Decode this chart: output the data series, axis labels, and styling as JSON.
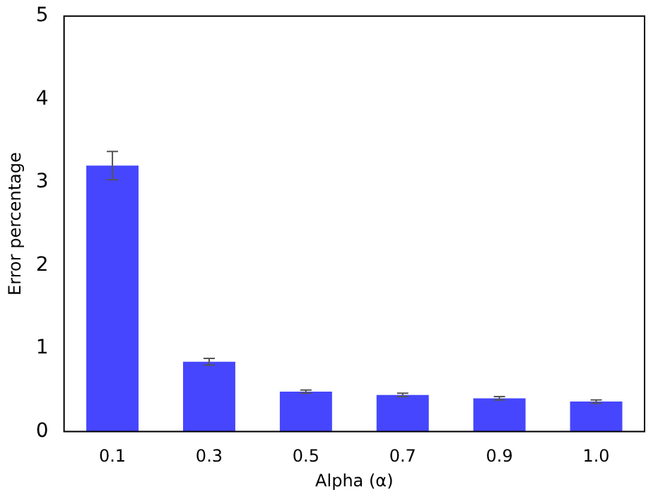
{
  "chart_data": {
    "type": "bar",
    "xlabel": "Alpha (α)",
    "ylabel": "Error percentage",
    "categories": [
      "0.1",
      "0.3",
      "0.5",
      "0.7",
      "0.9",
      "1.0"
    ],
    "values": [
      3.2,
      0.84,
      0.48,
      0.44,
      0.4,
      0.36
    ],
    "errors": [
      0.17,
      0.04,
      0.02,
      0.02,
      0.02,
      0.02
    ],
    "color": "#4646ff",
    "ylim": [
      0,
      5
    ],
    "yticks": [
      0,
      1,
      2,
      3,
      4,
      5
    ],
    "grid": false
  }
}
